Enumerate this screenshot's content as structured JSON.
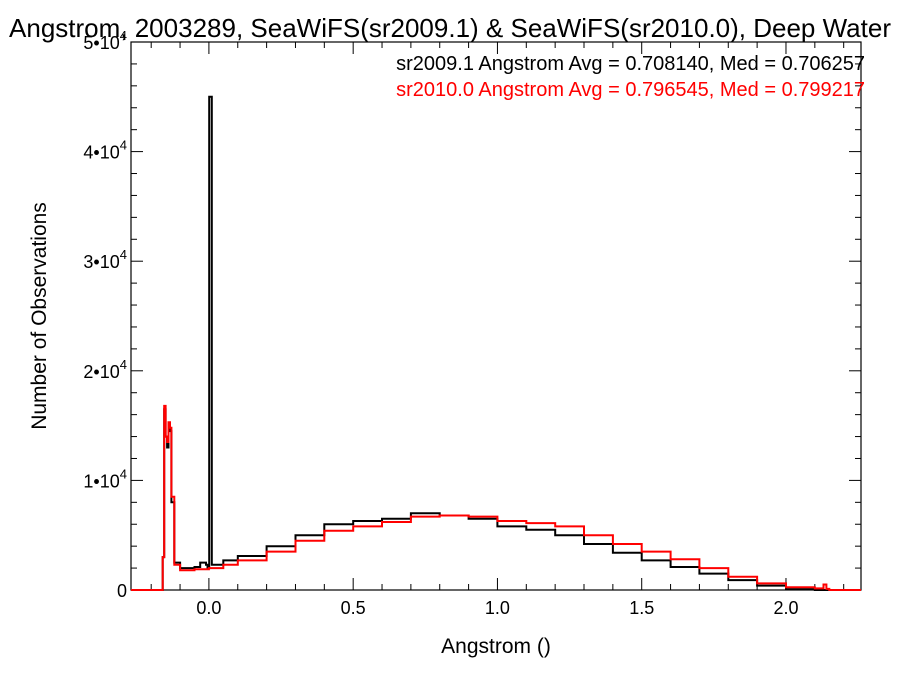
{
  "chart_data": {
    "type": "line",
    "title": "Angstrom, 2003289, SeaWiFS(sr2009.1) & SeaWiFS(sr2010.0), Deep Water",
    "xlabel": "Angstrom ()",
    "ylabel": "Number of Observations",
    "xlim": [
      -0.27,
      2.26
    ],
    "ylim": [
      0,
      50000
    ],
    "xticks": [
      {
        "value": 0.0,
        "label": "0.0"
      },
      {
        "value": 0.5,
        "label": "0.5"
      },
      {
        "value": 1.0,
        "label": "1.0"
      },
      {
        "value": 1.5,
        "label": "1.5"
      },
      {
        "value": 2.0,
        "label": "2.0"
      }
    ],
    "yticks": [
      {
        "value": 0,
        "mant": "0",
        "exp": ""
      },
      {
        "value": 10000,
        "mant": "1•10",
        "exp": "4"
      },
      {
        "value": 20000,
        "mant": "2•10",
        "exp": "4"
      },
      {
        "value": 30000,
        "mant": "3•10",
        "exp": "4"
      },
      {
        "value": 40000,
        "mant": "4•10",
        "exp": "4"
      },
      {
        "value": 50000,
        "mant": "5•10",
        "exp": "4"
      }
    ],
    "grid": false,
    "legend": "top-right",
    "series": [
      {
        "label": "sr2009.1 Angstrom Avg = 0.708140, Med = 0.706257",
        "color": "#000000",
        "points": [
          [
            -0.27,
            0
          ],
          [
            -0.17,
            0
          ],
          [
            -0.16,
            3000
          ],
          [
            -0.155,
            16500
          ],
          [
            -0.15,
            14000
          ],
          [
            -0.145,
            13000
          ],
          [
            -0.14,
            15000
          ],
          [
            -0.135,
            14500
          ],
          [
            -0.13,
            8000
          ],
          [
            -0.12,
            2500
          ],
          [
            -0.1,
            2000
          ],
          [
            -0.05,
            2100
          ],
          [
            -0.03,
            2500
          ],
          [
            -0.01,
            2300
          ],
          [
            -0.005,
            2000
          ],
          [
            0.0,
            2000
          ],
          [
            0.001,
            45000
          ],
          [
            0.009,
            45000
          ],
          [
            0.01,
            2300
          ],
          [
            0.05,
            2700
          ],
          [
            0.1,
            3100
          ],
          [
            0.2,
            4000
          ],
          [
            0.3,
            5000
          ],
          [
            0.4,
            6000
          ],
          [
            0.5,
            6300
          ],
          [
            0.6,
            6500
          ],
          [
            0.7,
            7000
          ],
          [
            0.8,
            6800
          ],
          [
            0.9,
            6500
          ],
          [
            1.0,
            5800
          ],
          [
            1.1,
            5500
          ],
          [
            1.2,
            5000
          ],
          [
            1.3,
            4200
          ],
          [
            1.4,
            3400
          ],
          [
            1.5,
            2700
          ],
          [
            1.6,
            2100
          ],
          [
            1.7,
            1500
          ],
          [
            1.8,
            900
          ],
          [
            1.9,
            400
          ],
          [
            2.0,
            80
          ],
          [
            2.1,
            0
          ],
          [
            2.26,
            0
          ]
        ]
      },
      {
        "label": "sr2010.0 Angstrom Avg = 0.796545, Med = 0.799217",
        "color": "#ff0000",
        "points": [
          [
            -0.27,
            0
          ],
          [
            -0.17,
            0
          ],
          [
            -0.16,
            3000
          ],
          [
            -0.155,
            16800
          ],
          [
            -0.15,
            14000
          ],
          [
            -0.145,
            13500
          ],
          [
            -0.14,
            15300
          ],
          [
            -0.135,
            14800
          ],
          [
            -0.13,
            8500
          ],
          [
            -0.12,
            2300
          ],
          [
            -0.1,
            1800
          ],
          [
            -0.05,
            1900
          ],
          [
            0.0,
            2000
          ],
          [
            0.05,
            2300
          ],
          [
            0.1,
            2700
          ],
          [
            0.2,
            3500
          ],
          [
            0.3,
            4500
          ],
          [
            0.4,
            5400
          ],
          [
            0.5,
            5800
          ],
          [
            0.6,
            6200
          ],
          [
            0.7,
            6700
          ],
          [
            0.8,
            6800
          ],
          [
            0.9,
            6700
          ],
          [
            1.0,
            6300
          ],
          [
            1.1,
            6100
          ],
          [
            1.2,
            5800
          ],
          [
            1.3,
            5000
          ],
          [
            1.4,
            4200
          ],
          [
            1.5,
            3500
          ],
          [
            1.6,
            2800
          ],
          [
            1.7,
            2000
          ],
          [
            1.8,
            1200
          ],
          [
            1.9,
            600
          ],
          [
            2.0,
            250
          ],
          [
            2.1,
            150
          ],
          [
            2.13,
            500
          ],
          [
            2.14,
            100
          ],
          [
            2.15,
            0
          ],
          [
            2.26,
            0
          ]
        ]
      }
    ]
  }
}
